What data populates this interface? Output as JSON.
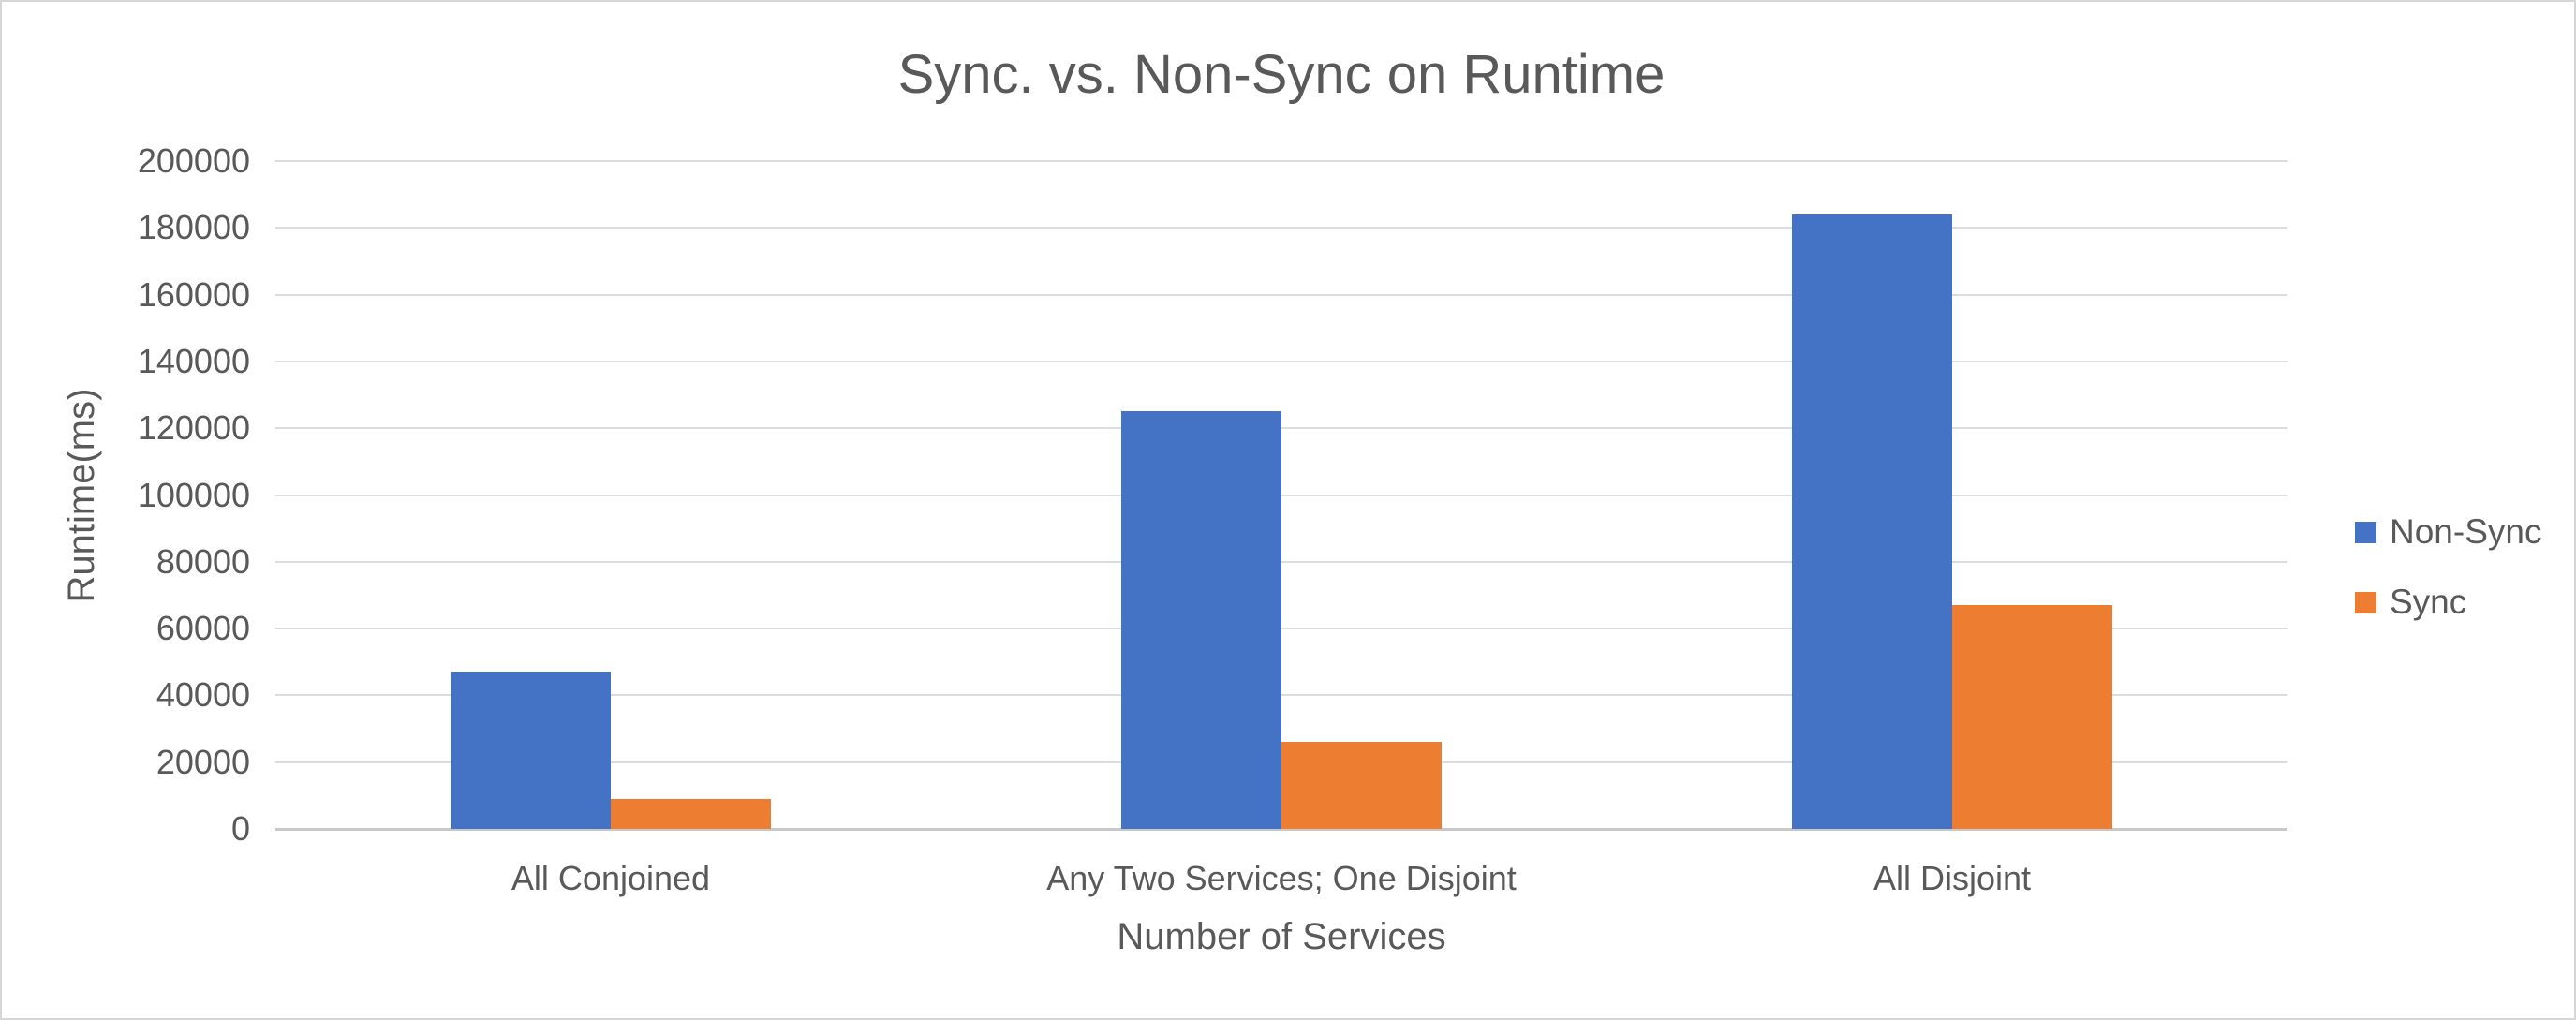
{
  "chart_data": {
    "type": "bar",
    "title": "Sync. vs. Non-Sync on Runtime",
    "xlabel": "Number of Services",
    "ylabel": "Runtime(ms)",
    "categories": [
      "All Conjoined",
      "Any Two Services; One Disjoint",
      "All Disjoint"
    ],
    "series": [
      {
        "name": "Non-Sync",
        "color": "#4472C4",
        "values": [
          47000,
          125000,
          184000
        ]
      },
      {
        "name": "Sync",
        "color": "#ED7D31",
        "values": [
          9000,
          26000,
          67000
        ]
      }
    ],
    "ylim": [
      0,
      200000
    ],
    "ytick_step": 20000,
    "ytick_labels": [
      "0",
      "20000",
      "40000",
      "60000",
      "80000",
      "100000",
      "120000",
      "140000",
      "160000",
      "180000",
      "200000"
    ],
    "grid": true,
    "legend_position": "right"
  },
  "colors": {
    "text": "#595959",
    "gridline": "#DCDCDC",
    "axis_line": "#C8C8C8",
    "background": "#FFFFFF",
    "border": "#D6D6D6"
  }
}
